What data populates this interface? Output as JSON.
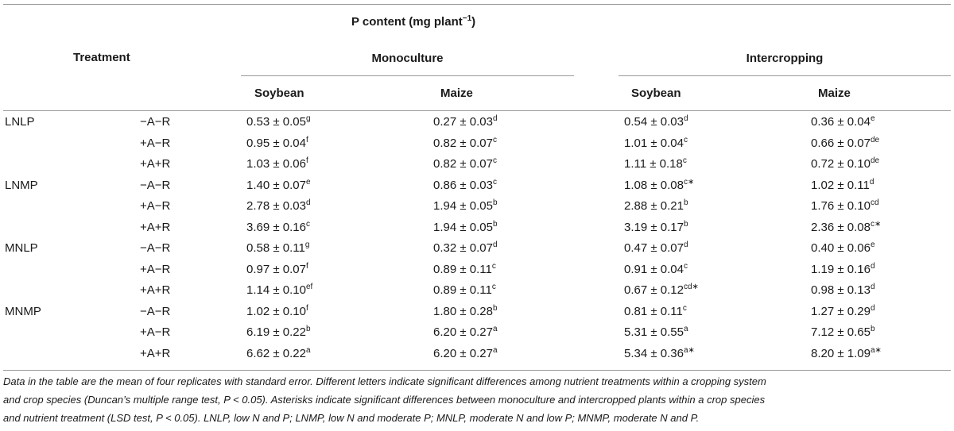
{
  "header": {
    "group_title": "P content (mg plant",
    "group_title_sup": "−1",
    "group_title_end": ")",
    "treatment_label": "Treatment",
    "systems": [
      "Monoculture",
      "Intercropping"
    ],
    "species": [
      "Soybean",
      "Maize",
      "Soybean",
      "Maize"
    ]
  },
  "groups": [
    {
      "name": "LNLP",
      "rows": [
        {
          "sub": "−A−R",
          "cells": [
            {
              "v": "0.53 ± 0.05",
              "s": "g"
            },
            {
              "v": "0.27 ± 0.03",
              "s": "d"
            },
            {
              "v": "0.54 ± 0.03",
              "s": "d"
            },
            {
              "v": "0.36 ± 0.04",
              "s": "e"
            }
          ]
        },
        {
          "sub": "+A−R",
          "cells": [
            {
              "v": "0.95 ± 0.04",
              "s": "f"
            },
            {
              "v": "0.82 ± 0.07",
              "s": "c"
            },
            {
              "v": "1.01 ± 0.04",
              "s": "c"
            },
            {
              "v": "0.66 ± 0.07",
              "s": "de"
            }
          ]
        },
        {
          "sub": "+A+R",
          "cells": [
            {
              "v": "1.03 ± 0.06",
              "s": "f"
            },
            {
              "v": "0.82 ± 0.07",
              "s": "c"
            },
            {
              "v": "1.11 ± 0.18",
              "s": "c"
            },
            {
              "v": "0.72 ± 0.10",
              "s": "de"
            }
          ]
        }
      ]
    },
    {
      "name": "LNMP",
      "rows": [
        {
          "sub": "−A−R",
          "cells": [
            {
              "v": "1.40 ± 0.07",
              "s": "e"
            },
            {
              "v": "0.86 ± 0.03",
              "s": "c"
            },
            {
              "v": "1.08 ± 0.08",
              "s": "c∗"
            },
            {
              "v": "1.02 ± 0.11",
              "s": "d"
            }
          ]
        },
        {
          "sub": "+A−R",
          "cells": [
            {
              "v": "2.78 ± 0.03",
              "s": "d"
            },
            {
              "v": "1.94 ± 0.05",
              "s": "b"
            },
            {
              "v": "2.88 ± 0.21",
              "s": "b"
            },
            {
              "v": "1.76 ± 0.10",
              "s": "cd"
            }
          ]
        },
        {
          "sub": "+A+R",
          "cells": [
            {
              "v": "3.69 ± 0.16",
              "s": "c"
            },
            {
              "v": "1.94 ± 0.05",
              "s": "b"
            },
            {
              "v": "3.19 ± 0.17",
              "s": "b"
            },
            {
              "v": "2.36 ± 0.08",
              "s": "c∗"
            }
          ]
        }
      ]
    },
    {
      "name": "MNLP",
      "rows": [
        {
          "sub": "−A−R",
          "cells": [
            {
              "v": "0.58 ± 0.11",
              "s": "g"
            },
            {
              "v": "0.32 ± 0.07",
              "s": "d"
            },
            {
              "v": "0.47 ± 0.07",
              "s": "d"
            },
            {
              "v": "0.40 ± 0.06",
              "s": "e"
            }
          ]
        },
        {
          "sub": "+A−R",
          "cells": [
            {
              "v": "0.97 ± 0.07",
              "s": "f"
            },
            {
              "v": "0.89 ± 0.11",
              "s": "c"
            },
            {
              "v": "0.91 ± 0.04",
              "s": "c"
            },
            {
              "v": "1.19 ± 0.16",
              "s": "d"
            }
          ]
        },
        {
          "sub": "+A+R",
          "cells": [
            {
              "v": "1.14 ± 0.10",
              "s": "ef"
            },
            {
              "v": "0.89 ± 0.11",
              "s": "c"
            },
            {
              "v": "0.67 ± 0.12",
              "s": "cd∗"
            },
            {
              "v": "0.98 ± 0.13",
              "s": "d"
            }
          ]
        }
      ]
    },
    {
      "name": "MNMP",
      "rows": [
        {
          "sub": "−A−R",
          "cells": [
            {
              "v": "1.02 ± 0.10",
              "s": "f"
            },
            {
              "v": "1.80 ± 0.28",
              "s": "b"
            },
            {
              "v": "0.81 ± 0.11",
              "s": "c"
            },
            {
              "v": "1.27 ± 0.29",
              "s": "d"
            }
          ]
        },
        {
          "sub": "+A−R",
          "cells": [
            {
              "v": "6.19 ± 0.22",
              "s": "b"
            },
            {
              "v": "6.20 ± 0.27",
              "s": "a"
            },
            {
              "v": "5.31 ± 0.55",
              "s": "a"
            },
            {
              "v": "7.12 ± 0.65",
              "s": "b"
            }
          ]
        },
        {
          "sub": "+A+R",
          "cells": [
            {
              "v": "6.62 ± 0.22",
              "s": "a"
            },
            {
              "v": "6.20 ± 0.27",
              "s": "a"
            },
            {
              "v": "5.34 ± 0.36",
              "s": "a∗"
            },
            {
              "v": "8.20 ± 1.09",
              "s": "a∗"
            }
          ]
        }
      ]
    }
  ],
  "footnote": [
    "Data in the table are the mean of four replicates with standard error. Different letters indicate significant differences among nutrient treatments within a cropping system",
    "and crop species (Duncan’s multiple range test, P < 0.05). Asterisks indicate significant differences between monoculture and intercropped plants within a crop species",
    "and nutrient treatment (LSD test, P < 0.05). LNLP, low N and P; LNMP, low N and moderate P; MNLP, moderate N and low P; MNMP, moderate N and P."
  ]
}
